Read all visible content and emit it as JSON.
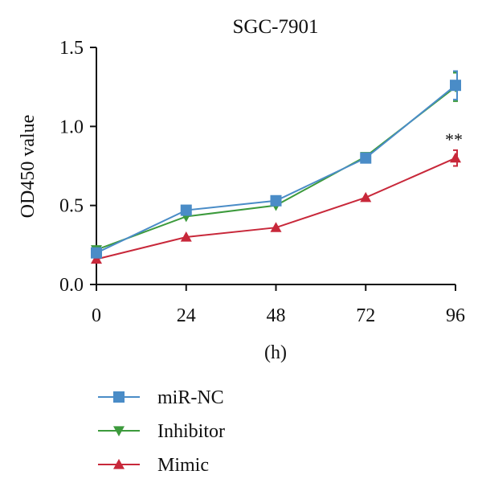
{
  "chart_data": {
    "type": "line",
    "title": "SGC-7901",
    "xlabel": "(h)",
    "ylabel": "OD450 value",
    "x": [
      0,
      24,
      48,
      72,
      96
    ],
    "xticks": [
      "0",
      "24",
      "48",
      "72",
      "96"
    ],
    "xlim": [
      0,
      96
    ],
    "yticks": [
      "0.0",
      "0.5",
      "1.0",
      "1.5"
    ],
    "ylim": [
      0,
      1.5
    ],
    "grid": false,
    "legend_position": "bottom-left",
    "annotation": "**",
    "series": [
      {
        "name": "miR-NC",
        "values": [
          0.2,
          0.47,
          0.53,
          0.8,
          1.26
        ],
        "error": [
          0,
          0,
          0,
          0,
          0.09
        ],
        "color": "#4a8cc7",
        "marker": "square"
      },
      {
        "name": "Inhibitor",
        "values": [
          0.22,
          0.43,
          0.5,
          0.81,
          1.25
        ],
        "error": [
          0,
          0,
          0,
          0,
          0.09
        ],
        "color": "#3c9a3c",
        "marker": "triangle-down"
      },
      {
        "name": "Mimic",
        "values": [
          0.16,
          0.3,
          0.36,
          0.55,
          0.8
        ],
        "error": [
          0,
          0,
          0,
          0,
          0.05
        ],
        "color": "#c8283a",
        "marker": "triangle-up"
      }
    ]
  }
}
